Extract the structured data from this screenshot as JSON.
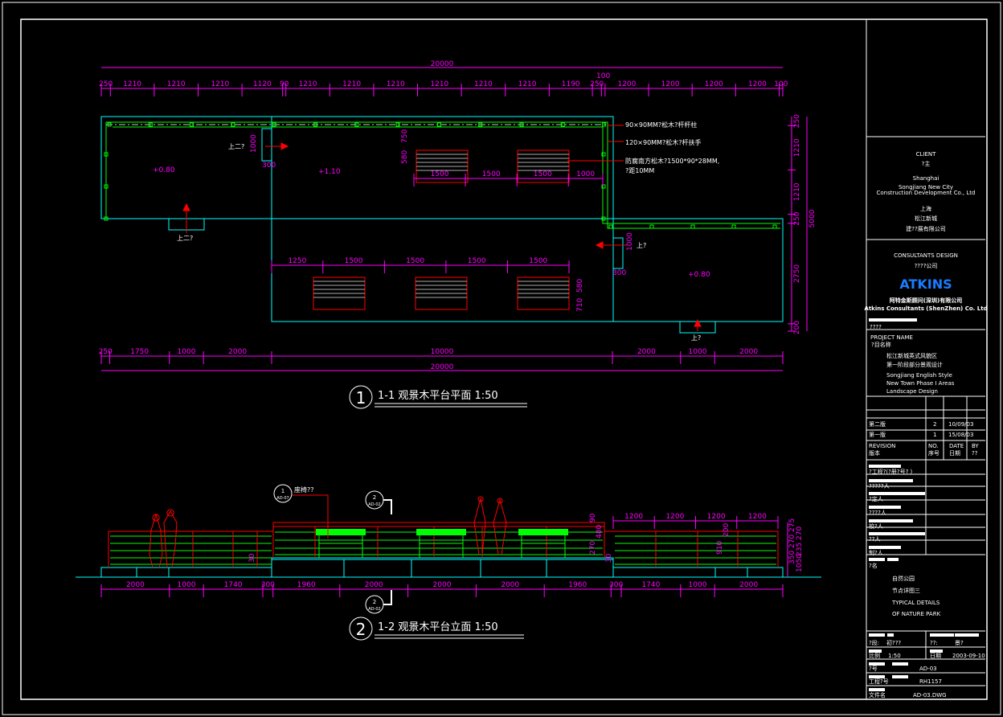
{
  "colors": {
    "dimension": "#ff00ff",
    "platform": "#00ffff",
    "railing": "#00ff00",
    "structure": "#ff0000",
    "bench": "#aaaaaa",
    "frame": "#ffffff",
    "brand": "#1a7cff"
  },
  "plan": {
    "total_top": "20000",
    "total_bottom": "20000",
    "top_dims": [
      "250",
      "1210",
      "1210",
      "1210",
      "1120",
      "90",
      "1210",
      "1210",
      "1210",
      "1210",
      "1210",
      "1210",
      "1190",
      "250",
      "100",
      "1200",
      "1200",
      "1200",
      "1200",
      "100"
    ],
    "bottom_dims": [
      "250",
      "1750",
      "1000",
      "2000",
      "10000",
      "2000",
      "1000",
      "2000"
    ],
    "right_dims": [
      "250",
      "1210",
      "1210",
      "250",
      "2750",
      "200"
    ],
    "right_total": "5000",
    "bench_dims_top": [
      "1500",
      "1500",
      "1500",
      "1000"
    ],
    "bench_dims_bottom": [
      "1250",
      "1500",
      "1500",
      "1500",
      "1500"
    ],
    "misc_dims": {
      "stair_h": "1000",
      "stair_w": "300",
      "d750": "750",
      "d580": "580",
      "d580b": "580",
      "d710": "710",
      "d1000": "1000",
      "d300": "300"
    },
    "levels": [
      "+0.80",
      "+1.10",
      "+0.80"
    ],
    "up_labels": [
      "上二?",
      "上二?",
      "上?",
      "上?"
    ],
    "notes": [
      "90×90MM?松木?杆杆柱",
      "120×90MM?松木?杆扶手",
      "防腐南方松木?1500*90*28MM,",
      "?距10MM"
    ],
    "title_number": "1",
    "title": "1-1  观景木平台平面  1:50"
  },
  "elevation": {
    "dims": [
      "2000",
      "1000",
      "1740",
      "300",
      "1960",
      "2000",
      "2000",
      "2000",
      "1960",
      "300",
      "1740",
      "1000",
      "2000"
    ],
    "rail_dims": [
      "1200",
      "1200",
      "1200",
      "1200"
    ],
    "vertical_dims": [
      "275",
      "270",
      "270",
      "235",
      "350",
      "1050",
      "90",
      "910",
      "480",
      "270",
      "200",
      "30",
      "30"
    ],
    "callouts": [
      {
        "num": "1",
        "ref": "AD-07",
        "label": "座椅??"
      },
      {
        "num": "2",
        "ref": "AD-02"
      },
      {
        "num": "2",
        "ref": "AD-02"
      }
    ],
    "title_number": "2",
    "title": "1-2  观景木平台立面  1:50"
  },
  "title_block": {
    "client_heading": "CLIENT",
    "client_cn": "?主",
    "client_en": [
      "Shanghai",
      "Songjiang New City",
      "Construction Development Co., Ltd"
    ],
    "client_cn_lines": [
      "上海",
      "松江新城",
      "建??展有限公司"
    ],
    "consultant_heading": "CONSULTANTS DESIGN",
    "consultant_cn": "????公司",
    "brand": "ATKINS",
    "brand_cn": "阿特金斯顾问(深圳)有限公司",
    "brand_en": "Atkins Consultants (ShenZhen) Co. Ltd",
    "stamp_label": "????",
    "project_heading": "PROJECT NAME",
    "project_cn_label": "?目名称",
    "project_cn": [
      "松江新城英式风貌区",
      "第一阶段部分景观设计"
    ],
    "project_en": [
      "Songjiang English Style",
      "New Town Phase I Areas",
      "Landscape Design"
    ],
    "revisions": [
      {
        "name": "第二版",
        "no": "2",
        "date": "10/09/03"
      },
      {
        "name": "第一版",
        "no": "1",
        "date": "15/08/03"
      }
    ],
    "rev_headers": {
      "revision": "REVISION",
      "revision_cn": "版本",
      "no": "NO.",
      "no_cn": "序号",
      "date": "DATE",
      "date_cn": "日期",
      "by": "BY",
      "by_cn": "??"
    },
    "roles": [
      "?工程?(?册?号?      )",
      "?????人",
      "?定人",
      "????人",
      "校?人",
      "??人",
      "制?人"
    ],
    "drawing_label": "?名",
    "drawing_title": [
      "自然公园",
      "节点详图三",
      "TYPICAL DETAILS",
      "OF NATURE PARK"
    ],
    "stage_label": "?段:",
    "stage_value": "初???",
    "type_label": "??:",
    "type_value": "景?",
    "scale_label": "比例",
    "scale_value": "1:50",
    "date_label": "日期",
    "date_value": "2003-09-10",
    "drawing_no_label": "?号",
    "drawing_no": "AD-03",
    "project_no_label": "工程?号",
    "project_no": "RH1157",
    "file_label": "文件名",
    "file_name": "AD-03.DWG"
  }
}
